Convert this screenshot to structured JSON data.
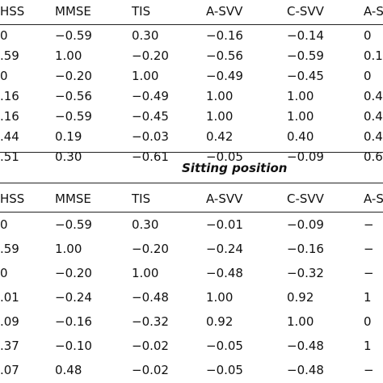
{
  "table": {
    "sections": [
      {
        "header": [
          "HSS",
          "MMSE",
          "TIS",
          "A-SVV",
          "C-SVV",
          "A-S"
        ],
        "rows": [
          [
            "0",
            "−0.59",
            "0.30",
            "−0.16",
            "−0.14",
            "0"
          ],
          [
            ".59",
            "1.00",
            "−0.20",
            "−0.56",
            "−0.59",
            "0.1"
          ],
          [
            "0",
            "−0.20",
            "1.00",
            "−0.49",
            "−0.45",
            "0"
          ],
          [
            ".16",
            "−0.56",
            "−0.49",
            "1.00",
            "1.00",
            "0.4"
          ],
          [
            ".16",
            "−0.59",
            "−0.45",
            "1.00",
            "1.00",
            "0.4"
          ],
          [
            ".44",
            "0.19",
            "−0.03",
            "0.42",
            "0.40",
            "0.4"
          ],
          [
            ".51",
            "0.30",
            "−0.61",
            "−0.05",
            "−0.09",
            "0.6"
          ]
        ]
      },
      {
        "title": "Sitting position",
        "header": [
          "HSS",
          "MMSE",
          "TIS",
          "A-SVV",
          "C-SVV",
          "A-S"
        ],
        "rows": [
          [
            "0",
            "−0.59",
            "0.30",
            "−0.01",
            "−0.09",
            "−"
          ],
          [
            ".59",
            "1.00",
            "−0.20",
            "−0.24",
            "−0.16",
            "−"
          ],
          [
            "0",
            "−0.20",
            "1.00",
            "−0.48",
            "−0.32",
            "−"
          ],
          [
            ".01",
            "−0.24",
            "−0.48",
            "1.00",
            "0.92",
            "1"
          ],
          [
            ".09",
            "−0.16",
            "−0.32",
            "0.92",
            "1.00",
            "0"
          ],
          [
            ".37",
            "−0.10",
            "−0.02",
            "−0.05",
            "−0.48",
            "1"
          ],
          [
            ".07",
            "0.48",
            "−0.02",
            "−0.05",
            "−0.48",
            "−"
          ]
        ]
      }
    ]
  }
}
